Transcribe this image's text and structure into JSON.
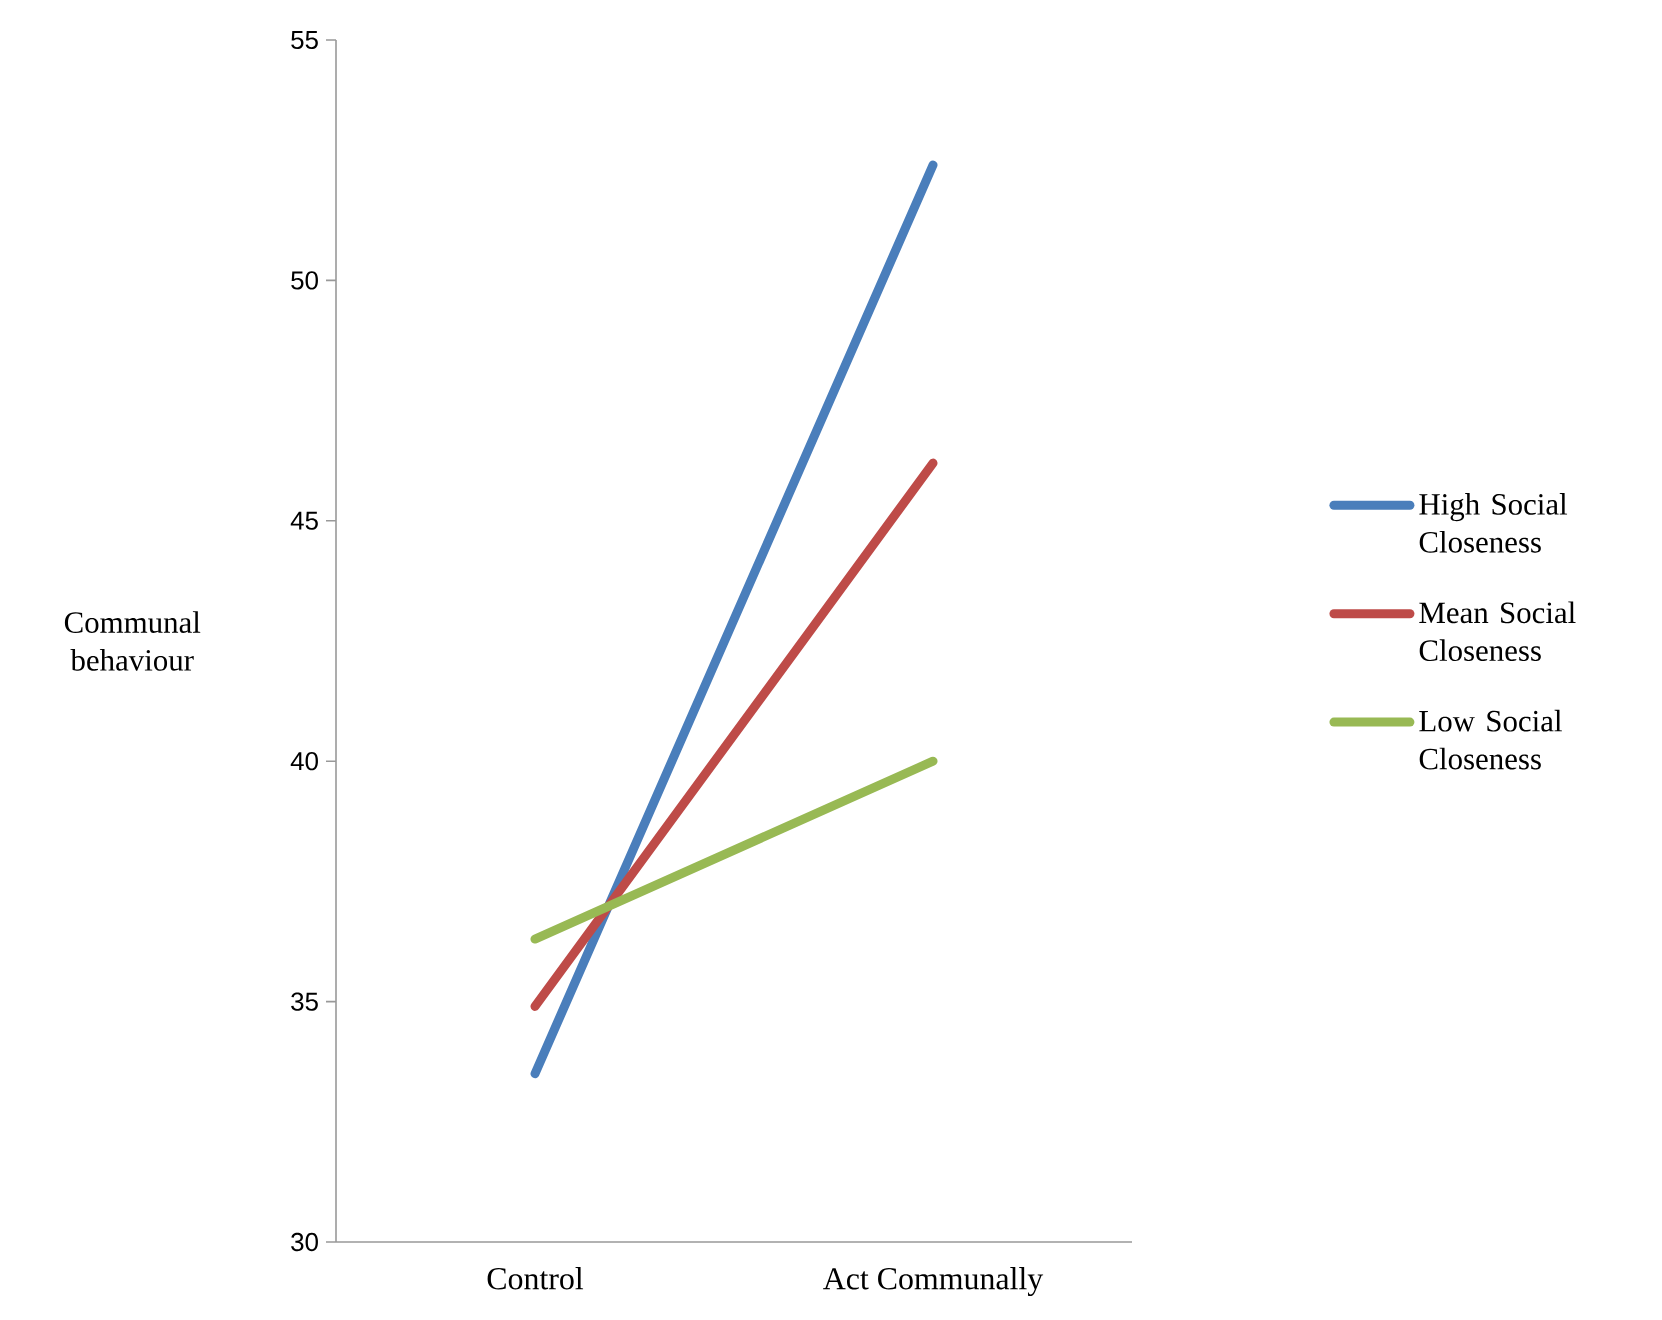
{
  "chart_data": {
    "type": "line",
    "ylabel": "Communal behaviour",
    "categories": [
      "Control",
      "Act Communally"
    ],
    "series": [
      {
        "name": "High Social Closeness",
        "color": "#4a7ebb",
        "values": [
          33.5,
          52.4
        ]
      },
      {
        "name": "Mean Social Closeness",
        "color": "#be4b48",
        "values": [
          34.9,
          46.2
        ]
      },
      {
        "name": "Low Social Closeness",
        "color": "#98b954",
        "values": [
          36.3,
          40.0
        ]
      }
    ],
    "ylim": [
      30,
      55
    ],
    "yticks": [
      30,
      35,
      40,
      45,
      50,
      55
    ],
    "legend": "right"
  }
}
